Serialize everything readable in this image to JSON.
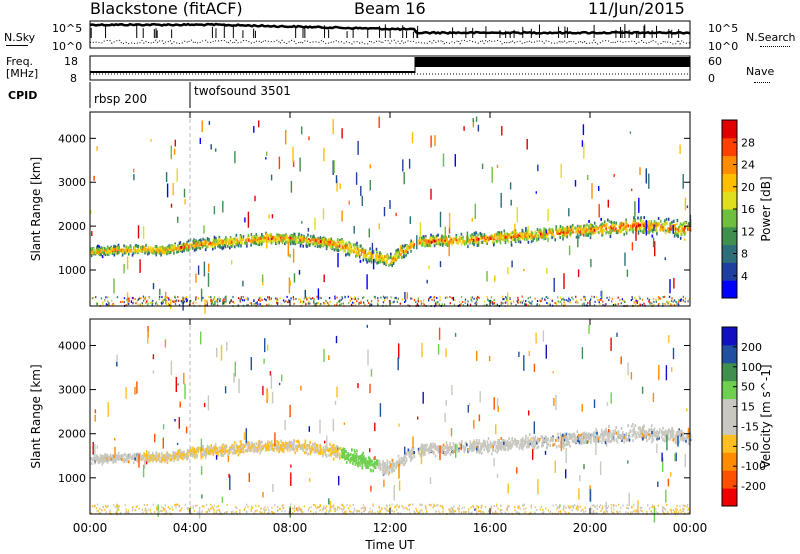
{
  "header": {
    "station": "Blackstone (fitACF)",
    "beam": "Beam 16",
    "date": "11/Jun/2015"
  },
  "panels": {
    "nsky_label": "N.Sky",
    "nsky_ticks": [
      "10^5",
      "10^0"
    ],
    "nsearch_label": "N.Search",
    "nsearch_ticks": [
      "10^5",
      "10^0"
    ],
    "freq_label": "Freq.",
    "freq_unit": "[MHz]",
    "freq_ticks": [
      "18",
      "8"
    ],
    "nave_label": "Nave",
    "nave_ticks": [
      "60",
      "0"
    ],
    "cpid_label": "CPID",
    "cpid_programs": [
      "rbsp 200",
      "twofsound 3501"
    ]
  },
  "colors": {
    "power_scale": [
      "#0000ff",
      "#1f3fa0",
      "#2e6e7a",
      "#3f8f4f",
      "#6fbf3f",
      "#dfdf1f",
      "#ffbf00",
      "#ff8c00",
      "#ff4000",
      "#e00000"
    ],
    "velocity_scale": [
      "#ee0000",
      "#ff5000",
      "#ff8c00",
      "#ffbf20",
      "#c8c8c0",
      "#c8c8c0",
      "#6fd04f",
      "#3f8f4f",
      "#2050a0",
      "#1010c0"
    ]
  },
  "chart_data": [
    {
      "type": "heatmap",
      "title": "Power",
      "xlabel": "Time UT",
      "ylabel": "Slant Range [km]",
      "xlim": [
        "00:00",
        "24:00"
      ],
      "ylim": [
        180,
        4600
      ],
      "x_ticks": [
        "00:00",
        "04:00",
        "08:00",
        "12:00",
        "16:00",
        "20:00",
        "00:00"
      ],
      "y_ticks": [
        1000,
        2000,
        3000,
        4000
      ],
      "colorbar_label": "Power [dB]",
      "colorbar_ticks": [
        "4",
        "8",
        "12",
        "16",
        "20",
        "24",
        "28"
      ],
      "colorbar_range": [
        0,
        30
      ],
      "scatter_bands": [
        {
          "name": "main",
          "t": [
            0,
            1,
            2,
            3,
            4,
            5,
            6,
            7,
            8,
            9,
            10,
            11,
            12,
            13,
            14,
            15,
            16,
            17,
            18,
            19,
            20,
            21,
            22,
            23,
            24
          ],
          "range_km": [
            1450,
            1480,
            1500,
            1480,
            1600,
            1650,
            1700,
            1750,
            1750,
            1700,
            1600,
            1400,
            1250,
            1650,
            1700,
            1720,
            1750,
            1800,
            1850,
            1900,
            1950,
            2000,
            2050,
            2000,
            1950
          ],
          "width_km": [
            220,
            240,
            250,
            250,
            280,
            300,
            320,
            320,
            300,
            300,
            380,
            400,
            350,
            300,
            300,
            320,
            330,
            340,
            350,
            360,
            370,
            400,
            420,
            420,
            400
          ]
        },
        {
          "name": "ground",
          "t_start": 0,
          "t_end": 24,
          "range_km": 250
        }
      ]
    },
    {
      "type": "heatmap",
      "title": "Velocity",
      "xlabel": "Time UT",
      "ylabel": "Slant Range [km]",
      "xlim": [
        "00:00",
        "24:00"
      ],
      "ylim": [
        180,
        4600
      ],
      "x_ticks": [
        "00:00",
        "04:00",
        "08:00",
        "12:00",
        "16:00",
        "20:00",
        "00:00"
      ],
      "y_ticks": [
        1000,
        2000,
        3000,
        4000
      ],
      "colorbar_label": "Velocity [m s^-1]",
      "colorbar_ticks": [
        "-200",
        "-100",
        "-50",
        "-15",
        "15",
        "50",
        "100",
        "200"
      ],
      "colorbar_range": [
        -250,
        250
      ]
    }
  ]
}
